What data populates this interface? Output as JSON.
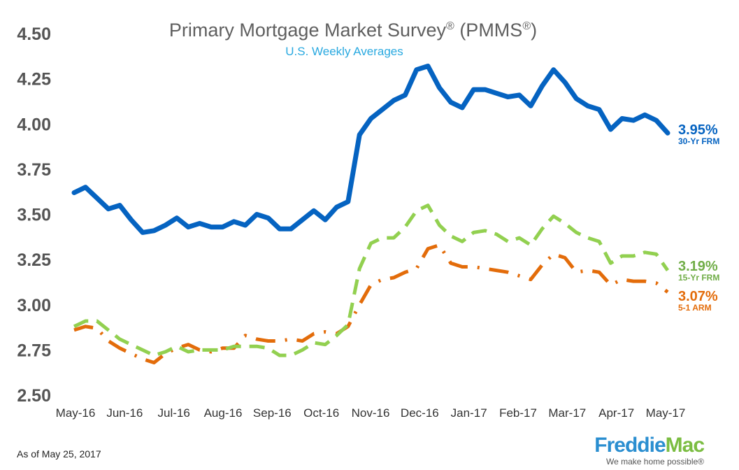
{
  "chart_data": {
    "type": "line",
    "title": "Primary Mortgage Market Survey",
    "title_mark1": "®",
    "title_mid": " (PMMS",
    "title_mark2": "®",
    "title_end": ")",
    "subtitle": "U.S. Weekly Averages",
    "x_tick_labels": [
      "May-16",
      "Jun-16",
      "Jul-16",
      "Aug-16",
      "Sep-16",
      "Oct-16",
      "Nov-16",
      "Dec-16",
      "Jan-17",
      "Feb-17",
      "Mar-17",
      "Apr-17",
      "May-17"
    ],
    "y_tick_labels": [
      "2.50",
      "2.75",
      "3.00",
      "3.25",
      "3.50",
      "3.75",
      "4.00",
      "4.25",
      "4.50"
    ],
    "ylim": [
      2.5,
      4.5
    ],
    "grid": false,
    "legend": "none (series labeled at line ends)",
    "series": [
      {
        "name": "30-Yr FRM",
        "end_label": "3.95%",
        "color": "#0563c1",
        "style": "solid",
        "values": [
          3.62,
          3.65,
          3.59,
          3.53,
          3.55,
          3.47,
          3.4,
          3.41,
          3.44,
          3.48,
          3.43,
          3.45,
          3.43,
          3.43,
          3.46,
          3.44,
          3.5,
          3.48,
          3.42,
          3.42,
          3.47,
          3.52,
          3.47,
          3.54,
          3.57,
          3.94,
          4.03,
          4.08,
          4.13,
          4.16,
          4.3,
          4.32,
          4.2,
          4.12,
          4.09,
          4.19,
          4.19,
          4.17,
          4.15,
          4.16,
          4.1,
          4.21,
          4.3,
          4.23,
          4.14,
          4.1,
          4.08,
          3.97,
          4.03,
          4.02,
          4.05,
          4.02,
          3.95
        ]
      },
      {
        "name": "15-Yr FRM",
        "end_label": "3.19%",
        "color": "#92d050",
        "style": "dashed",
        "values": [
          2.88,
          2.91,
          2.91,
          2.86,
          2.81,
          2.78,
          2.75,
          2.72,
          2.74,
          2.77,
          2.74,
          2.75,
          2.75,
          2.75,
          2.77,
          2.77,
          2.77,
          2.76,
          2.72,
          2.72,
          2.75,
          2.79,
          2.78,
          2.83,
          2.89,
          3.2,
          3.34,
          3.37,
          3.37,
          3.43,
          3.52,
          3.55,
          3.44,
          3.38,
          3.35,
          3.4,
          3.41,
          3.39,
          3.35,
          3.37,
          3.33,
          3.42,
          3.49,
          3.45,
          3.4,
          3.37,
          3.35,
          3.23,
          3.27,
          3.27,
          3.29,
          3.28,
          3.19
        ]
      },
      {
        "name": "5-1 ARM",
        "end_label": "3.07%",
        "color": "#e36c0a",
        "style": "dash-dot",
        "values": [
          2.86,
          2.88,
          2.87,
          2.8,
          2.76,
          2.73,
          2.7,
          2.68,
          2.73,
          2.76,
          2.78,
          2.75,
          2.74,
          2.76,
          2.76,
          2.83,
          2.81,
          2.8,
          2.8,
          2.81,
          2.8,
          2.84,
          2.85,
          2.84,
          2.88,
          3.0,
          3.11,
          3.14,
          3.15,
          3.18,
          3.2,
          3.31,
          3.33,
          3.23,
          3.21,
          3.21,
          3.2,
          3.19,
          3.18,
          3.16,
          3.14,
          3.22,
          3.28,
          3.26,
          3.18,
          3.19,
          3.18,
          3.11,
          3.14,
          3.13,
          3.13,
          3.12,
          3.07
        ]
      }
    ]
  },
  "footnote": "As of May 25, 2017",
  "logo": {
    "name_part1": "Freddie",
    "name_part2": "Mac",
    "tagline": "We make home possible®"
  },
  "colors": {
    "title": "#5f5f5f",
    "subtitle": "#29a9e0",
    "axis_text": "#555555"
  }
}
